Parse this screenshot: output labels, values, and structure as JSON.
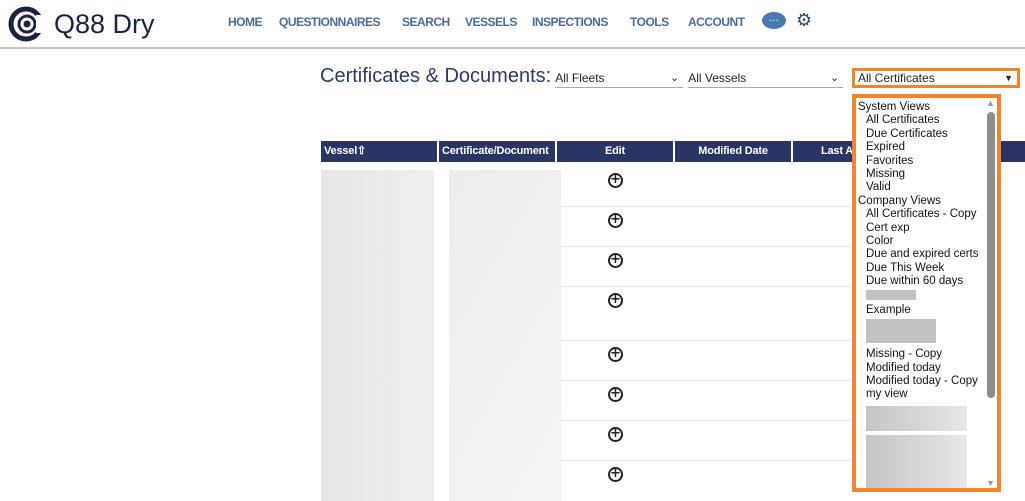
{
  "app": {
    "name": "Q88 Dry"
  },
  "nav": {
    "items": [
      "HOME",
      "QUESTIONNAIRES",
      "SEARCH",
      "VESSELS",
      "INSPECTIONS",
      "TOOLS",
      "ACCOUNT"
    ],
    "chat_icon": "chat-bubble-icon",
    "settings_icon": "gear-icon"
  },
  "page": {
    "title": "Certificates & Documents:"
  },
  "filters": {
    "fleet": "All Fleets",
    "vessel": "All Vessels",
    "certificate": "All Certificates"
  },
  "table": {
    "headers": [
      "Vessel⇧",
      "Certificate/Document",
      "Edit",
      "Modified Date",
      "Last A"
    ],
    "edit_icon": "plus-circle-icon",
    "row_count": 8
  },
  "dropdown": {
    "groups": [
      {
        "label": "System Views",
        "options": [
          "All Certificates",
          "Due Certificates",
          "Expired",
          "Favorites",
          "Missing",
          "Valid"
        ]
      },
      {
        "label": "Company Views",
        "options": [
          "All Certificates - Copy",
          "Cert exp",
          "Color",
          "Due and expired certs",
          "Due This Week",
          "Due within 60 days",
          "",
          "Example",
          "",
          "Missing - Copy",
          "Modified today",
          "Modified today - Copy",
          "my view"
        ]
      }
    ]
  },
  "colors": {
    "accent": "#f5832a",
    "header": "#2b3563",
    "nav": "#4a6a9a"
  }
}
